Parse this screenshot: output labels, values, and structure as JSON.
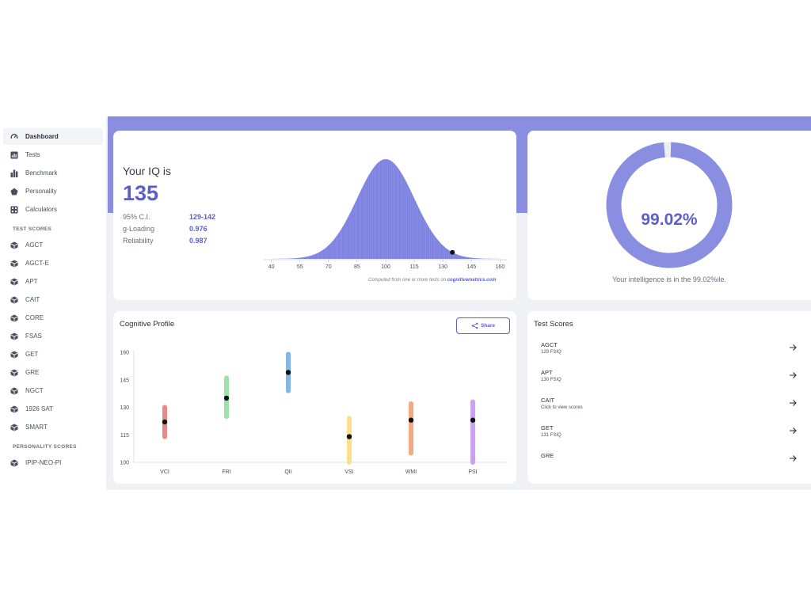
{
  "colors": {
    "accent": "#5b5fc7",
    "band": "#8a8ee0",
    "bell": "#7d82e0",
    "ring": "#8a8ee0"
  },
  "sidebar": {
    "items": [
      {
        "label": "Dashboard",
        "icon": "gauge-icon",
        "active": true
      },
      {
        "label": "Tests",
        "icon": "bar-chart-icon"
      },
      {
        "label": "Benchmark",
        "icon": "bars-icon"
      },
      {
        "label": "Personality",
        "icon": "pentagon-icon"
      },
      {
        "label": "Calculators",
        "icon": "calculator-icon"
      }
    ],
    "test_scores_heading": "TEST SCORES",
    "tests": [
      "AGCT",
      "AGCT-E",
      "APT",
      "CAIT",
      "CORE",
      "FSAS",
      "GET",
      "GRE",
      "NGCT",
      "1926 SAT",
      "SMART"
    ],
    "personality_heading": "PERSONALITY SCORES",
    "personality": [
      "IPIP-NEO-PI"
    ]
  },
  "iq": {
    "heading": "Your IQ is",
    "value": "135",
    "stats": [
      {
        "label": "95% C.I.",
        "value": "129-142"
      },
      {
        "label": "g-Loading",
        "value": "0.976"
      },
      {
        "label": "Reliability",
        "value": "0.987"
      }
    ],
    "footnote_prefix": "Computed from one or more tests on ",
    "footnote_site": "cognitivemetrics.com"
  },
  "chart_data": [
    {
      "type": "area",
      "distribution": "normal",
      "mean": 100,
      "sd": 15,
      "x_ticks": [
        40,
        55,
        70,
        85,
        100,
        115,
        130,
        145,
        160
      ],
      "xlim": [
        36,
        164
      ],
      "marker_x": 135
    },
    {
      "type": "scatter",
      "title": "Cognitive Profile",
      "categories": [
        "VCI",
        "FRI",
        "QII",
        "VSI",
        "WMI",
        "PSI"
      ],
      "values": [
        122,
        135,
        149,
        114,
        123,
        123
      ],
      "ranges": [
        [
          114,
          130
        ],
        [
          125,
          146
        ],
        [
          139,
          159
        ],
        [
          100,
          124
        ],
        [
          105,
          132
        ],
        [
          100,
          133
        ]
      ],
      "range_colors": [
        "#e98a86",
        "#9be3a8",
        "#7fb6ec",
        "#f8e08e",
        "#f3a983",
        "#c9a3ee"
      ],
      "y_ticks": [
        100,
        115,
        130,
        145,
        160
      ],
      "ylim": [
        100,
        160
      ],
      "grid": false
    }
  ],
  "percentile": {
    "value": "99.02%",
    "fraction": 0.9902,
    "caption": "Your intelligence is in the 99.02%ile."
  },
  "cognitive_profile": {
    "title": "Cognitive Profile",
    "share_label": "Share"
  },
  "test_scores": {
    "title": "Test Scores",
    "items": [
      {
        "name": "AGCT",
        "detail": "129 FSIQ"
      },
      {
        "name": "APT",
        "detail": "130 FSIQ"
      },
      {
        "name": "CAIT",
        "detail": "Click to view scores"
      },
      {
        "name": "GET",
        "detail": "131 FSIQ"
      },
      {
        "name": "GRE",
        "detail": ""
      }
    ]
  }
}
